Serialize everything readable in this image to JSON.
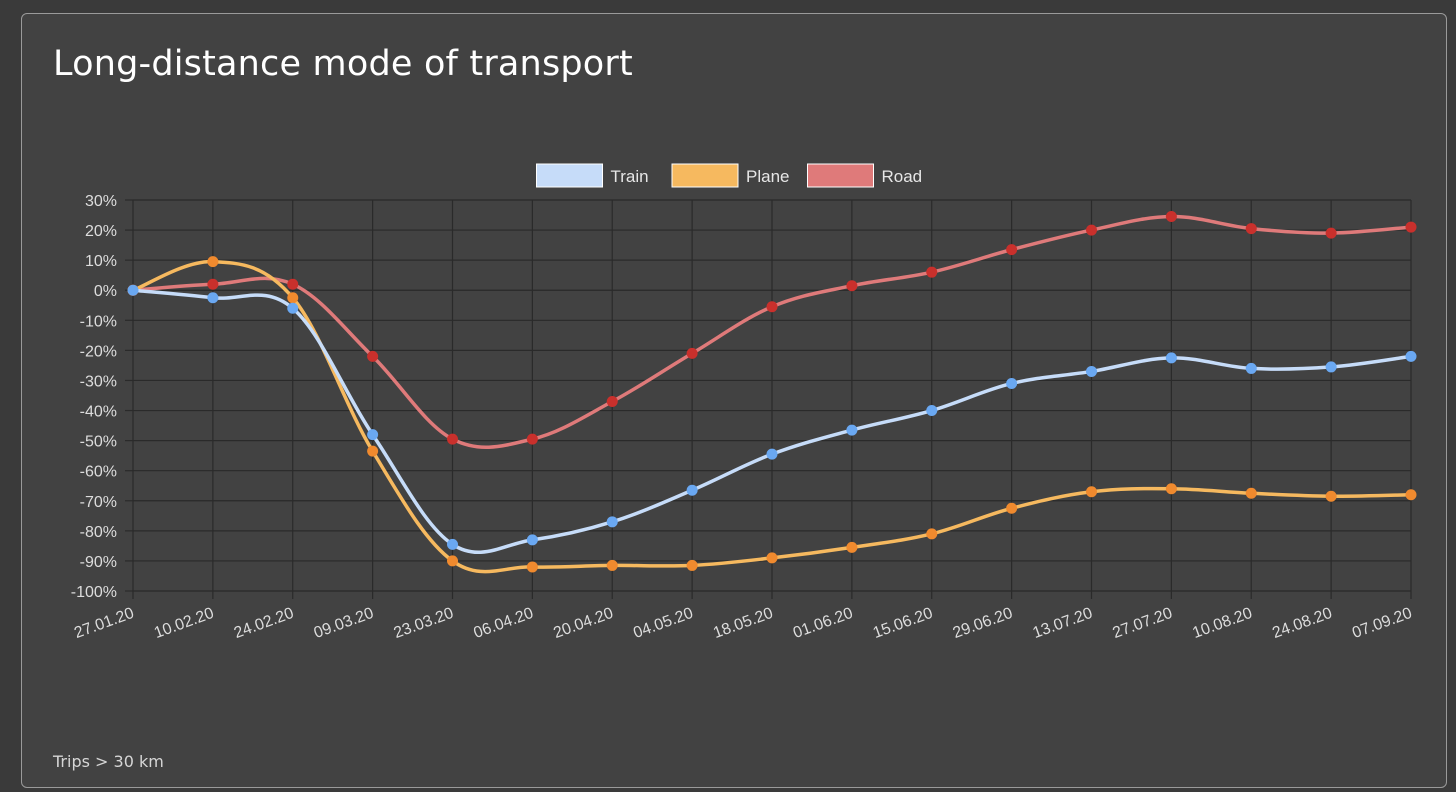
{
  "card": {
    "title": "Long-distance mode of transport",
    "footnote": "Trips > 30 km"
  },
  "chart_data": {
    "type": "line",
    "title": "Long-distance mode of transport",
    "categories": [
      "27.01.20",
      "10.02.20",
      "24.02.20",
      "09.03.20",
      "23.03.20",
      "06.04.20",
      "20.04.20",
      "04.05.20",
      "18.05.20",
      "01.06.20",
      "15.06.20",
      "29.06.20",
      "13.07.20",
      "27.07.20",
      "10.08.20",
      "24.08.20",
      "07.09.20"
    ],
    "y_ticks": [
      "30%",
      "20%",
      "10%",
      "0%",
      "-10%",
      "-20%",
      "-30%",
      "-40%",
      "-50%",
      "-60%",
      "-70%",
      "-80%",
      "-90%",
      "-100%"
    ],
    "ylim": [
      -100,
      30
    ],
    "y_unit": "%",
    "grid": true,
    "legend_position": "top-center",
    "series": [
      {
        "name": "Train",
        "line_color": "#c6dcf9",
        "point_color": "#6aa8f2",
        "legend_color": "#c6dcf9",
        "values": [
          0,
          -2.5,
          -6,
          -48,
          -84.5,
          -83,
          -77,
          -66.5,
          -54.5,
          -46.5,
          -40,
          -31,
          -27,
          -22.5,
          -26,
          -25.5,
          -22
        ]
      },
      {
        "name": "Plane",
        "line_color": "#f6b95f",
        "point_color": "#f08a2e",
        "legend_color": "#f6b95f",
        "values": [
          0,
          9.5,
          -2.5,
          -53.5,
          -90,
          -92,
          -91.5,
          -91.5,
          -89,
          -85.5,
          -81,
          -72.5,
          -67,
          -66,
          -67.5,
          -68.5,
          -68
        ]
      },
      {
        "name": "Road",
        "line_color": "#df7a7a",
        "point_color": "#c9302c",
        "legend_color": "#df7a7a",
        "values": [
          0,
          2,
          2,
          -22,
          -49.5,
          -49.5,
          -37,
          -21,
          -5.5,
          1.5,
          6,
          13.5,
          20,
          24.5,
          20.5,
          19,
          21
        ]
      }
    ]
  }
}
